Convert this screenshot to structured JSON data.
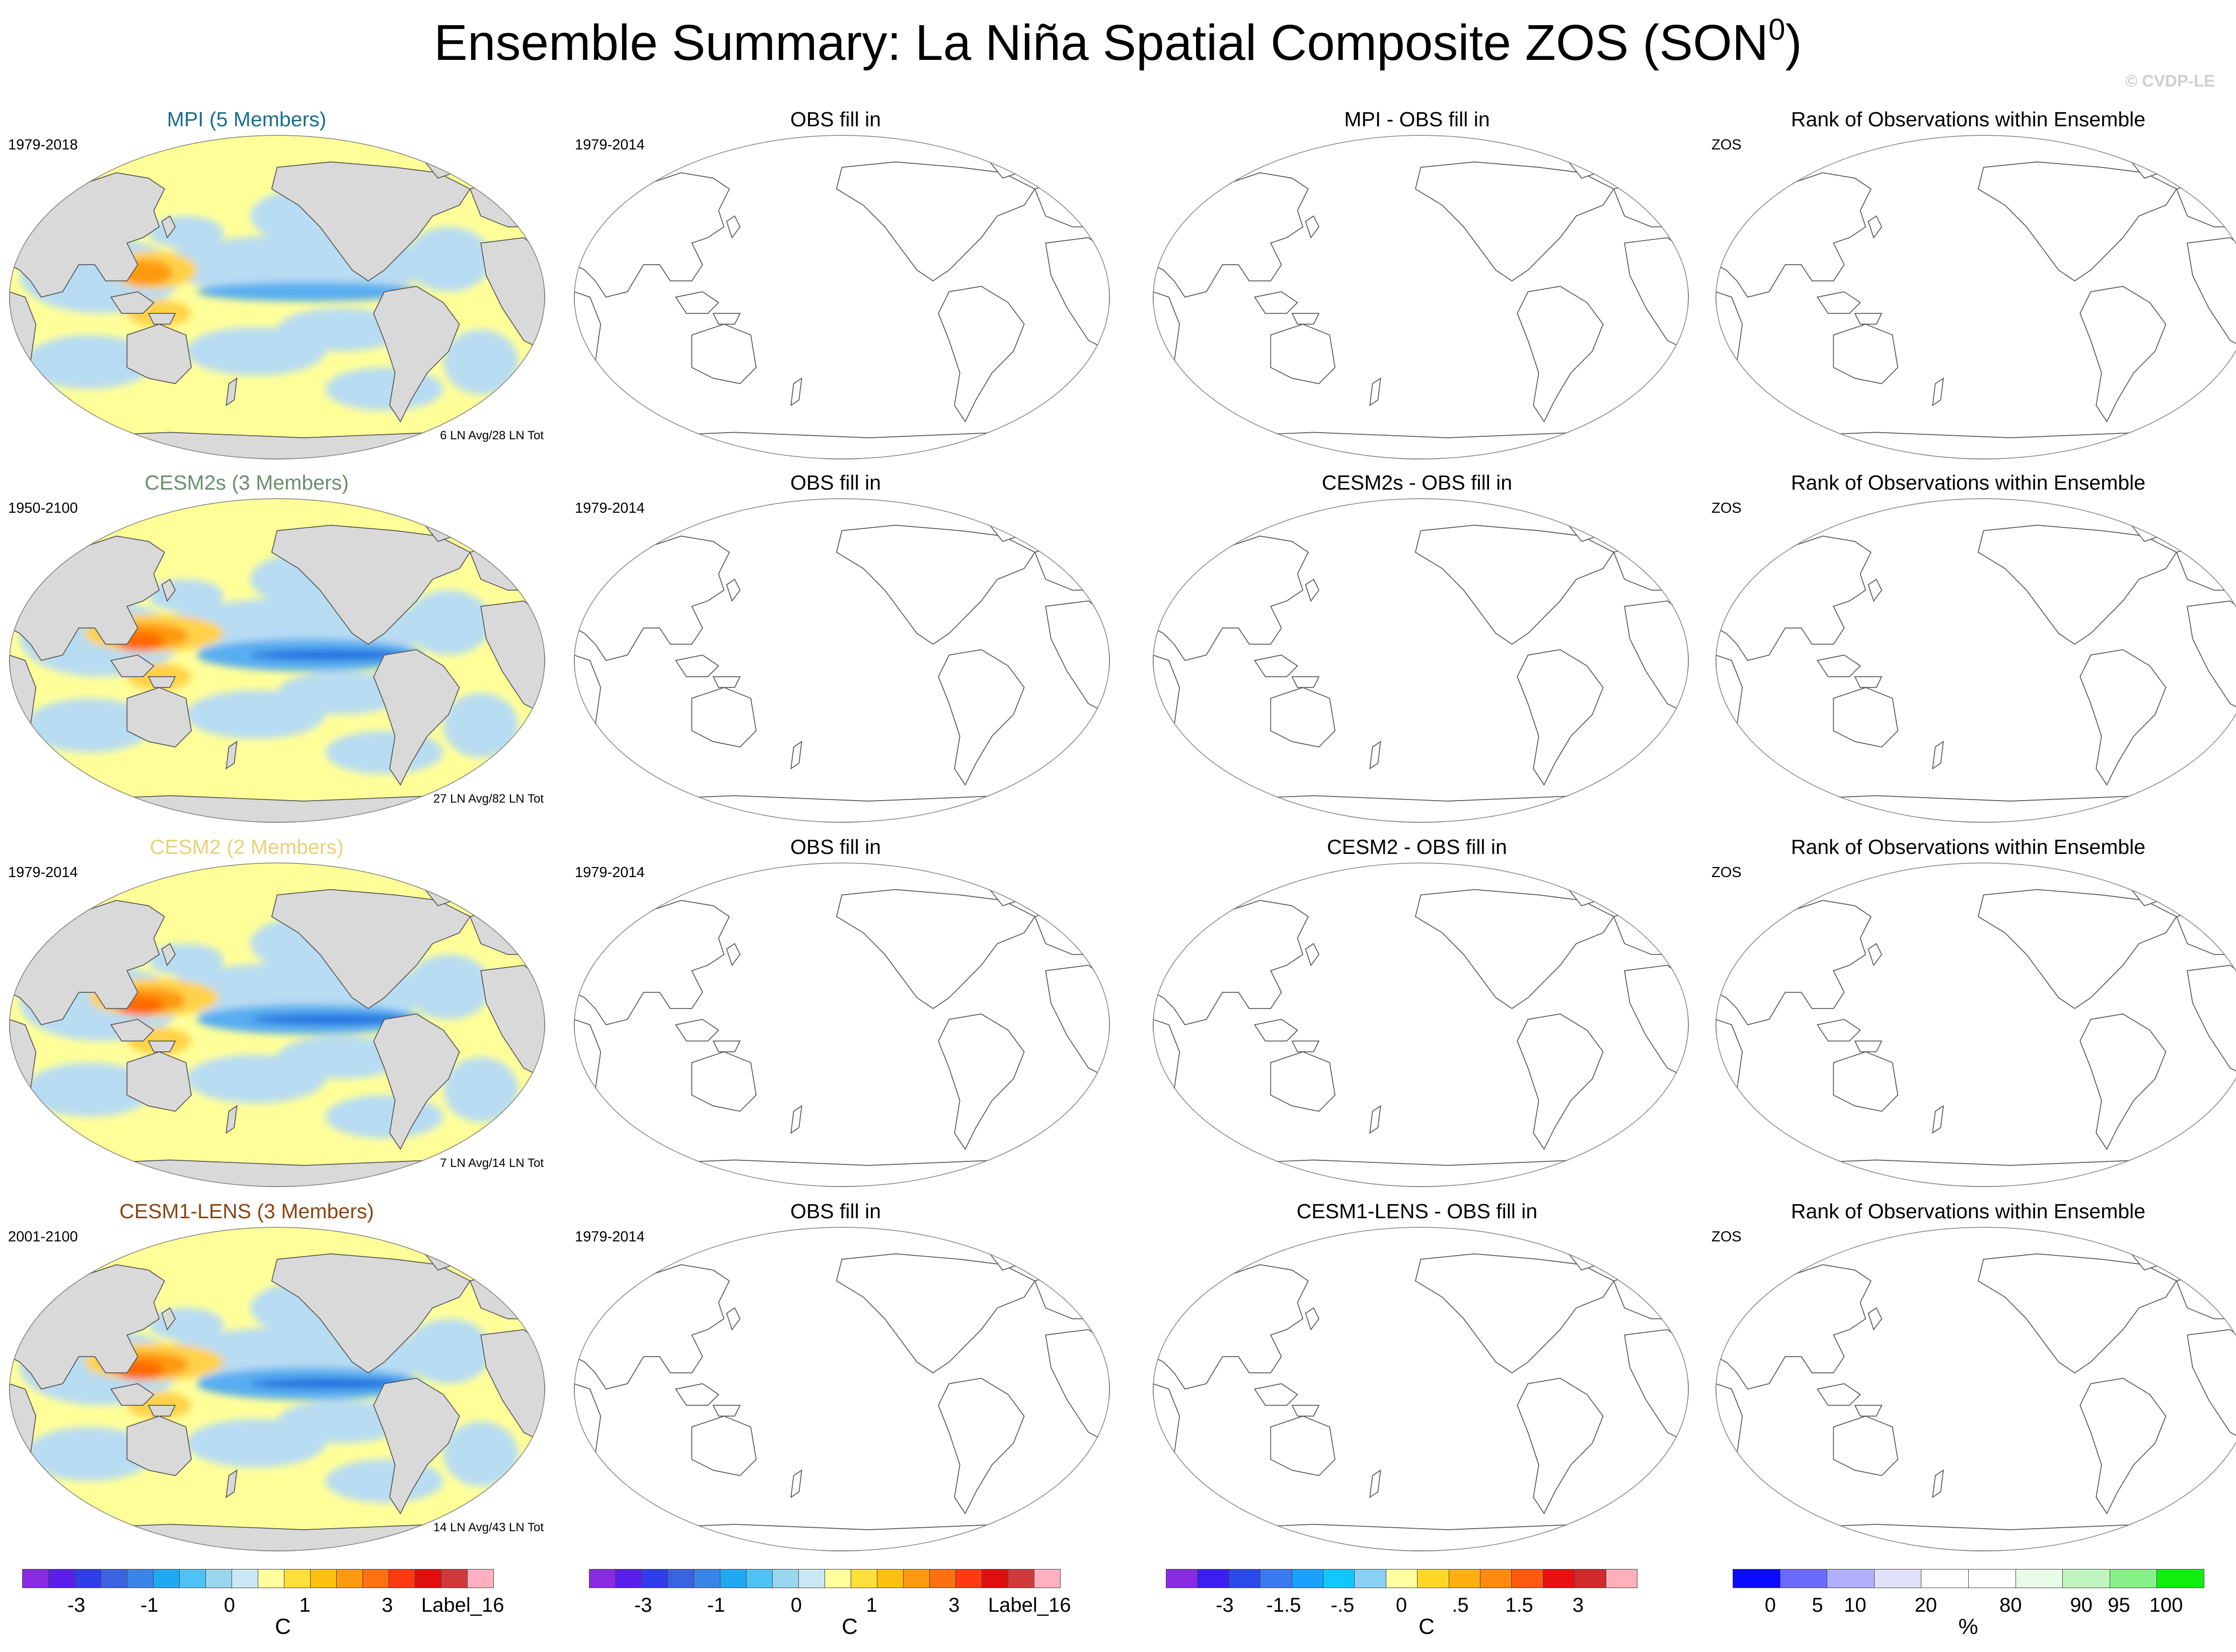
{
  "title": {
    "main": "Ensemble Summary: La Niña Spatial Composite ZOS (SON",
    "sup": "0",
    "close": ")"
  },
  "copyright": "© CVDP-LE",
  "colors": {
    "ocean_neutral": "#ffff99",
    "land": "#d9d9d9",
    "neg_light": "#b8dcf2",
    "neg_mid": "#58aef0",
    "neg_strong": "#1f6fe0",
    "pos_light": "#ffd24a",
    "pos_mid": "#ff9a10",
    "pos_strong": "#ff6a00"
  },
  "rows": [
    {
      "model": {
        "title": "MPI (5 Members)",
        "title_color": "#1a6e8e",
        "years": "1979-2018",
        "count": "6 LN Avg/28 LN Tot",
        "strength": 0.45
      },
      "obs": {
        "title": "OBS fill in",
        "years": "1979-2014"
      },
      "diff": {
        "title": "MPI - OBS fill in"
      },
      "rank": {
        "title": "Rank of Observations within Ensemble",
        "var": "ZOS"
      }
    },
    {
      "model": {
        "title": "CESM2s (3 Members)",
        "title_color": "#6b8e6b",
        "years": "1950-2100",
        "count": "27 LN Avg/82 LN Tot",
        "strength": 1.0
      },
      "obs": {
        "title": "OBS fill in",
        "years": "1979-2014"
      },
      "diff": {
        "title": "CESM2s - OBS fill in"
      },
      "rank": {
        "title": "Rank of Observations within Ensemble",
        "var": "ZOS"
      }
    },
    {
      "model": {
        "title": "CESM2 (2 Members)",
        "title_color": "#e6d27a",
        "years": "1979-2014",
        "count": "7 LN Avg/14 LN Tot",
        "strength": 0.9
      },
      "obs": {
        "title": "OBS fill in",
        "years": "1979-2014"
      },
      "diff": {
        "title": "CESM2 - OBS fill in"
      },
      "rank": {
        "title": "Rank of Observations within Ensemble",
        "var": "ZOS"
      }
    },
    {
      "model": {
        "title": "CESM1-LENS (3 Members)",
        "title_color": "#8b4513",
        "years": "2001-2100",
        "count": "14 LN Avg/43 LN Tot",
        "strength": 1.0
      },
      "obs": {
        "title": "OBS fill in",
        "years": "1979-2014"
      },
      "diff": {
        "title": "CESM1-LENS - OBS fill in"
      },
      "rank": {
        "title": "Rank of Observations within Ensemble",
        "var": "ZOS"
      }
    }
  ],
  "colorbars": [
    {
      "name": "composite",
      "colors": [
        "#8a2be2",
        "#5a1fe8",
        "#2f3ee8",
        "#3a63e0",
        "#3a86e8",
        "#20a8f2",
        "#4fc2f5",
        "#99d6f0",
        "#c9e8f4",
        "#ffff9e",
        "#ffdf3a",
        "#ffbf10",
        "#ff9a10",
        "#ff7010",
        "#ff3a10",
        "#e01010",
        "#d03a3a",
        "#ffb0c0"
      ],
      "labels": [
        "-3",
        "-1",
        "0",
        "1",
        "3",
        "Label_16"
      ],
      "unit": "C"
    },
    {
      "name": "obs",
      "colors": [
        "#8a2be2",
        "#5a1fe8",
        "#2f3ee8",
        "#3a63e0",
        "#3a86e8",
        "#20a8f2",
        "#4fc2f5",
        "#99d6f0",
        "#c9e8f4",
        "#ffff9e",
        "#ffdf3a",
        "#ffbf10",
        "#ff9a10",
        "#ff7010",
        "#ff3a10",
        "#e01010",
        "#d03a3a",
        "#ffb0c0"
      ],
      "labels": [
        "-3",
        "-1",
        "0",
        "1",
        "3",
        "Label_16"
      ],
      "unit": "C"
    },
    {
      "name": "difference",
      "colors": [
        "#8a2be2",
        "#3a1ff0",
        "#2a4ae8",
        "#3a7af0",
        "#1aa0ff",
        "#10c8ff",
        "#88d0f5",
        "#ffffa0",
        "#ffd82a",
        "#ffb010",
        "#ff8a10",
        "#ff5a10",
        "#e81010",
        "#d02a2a",
        "#ffb0b8"
      ],
      "labels": [
        "-3",
        "-1.5",
        "-.5",
        "0",
        ".5",
        "1.5",
        "3"
      ],
      "unit": "C"
    },
    {
      "name": "rank",
      "colors": [
        "#0a0aff",
        "#6a6aff",
        "#b0b0ff",
        "#e0e0f8",
        "#ffffff",
        "#ffffff",
        "#e8fbe8",
        "#c0f5c0",
        "#88f088",
        "#10ee10"
      ],
      "labels": [
        "0",
        "5",
        "10",
        "20",
        "80",
        "90",
        "95",
        "100"
      ],
      "unit": "%"
    }
  ]
}
